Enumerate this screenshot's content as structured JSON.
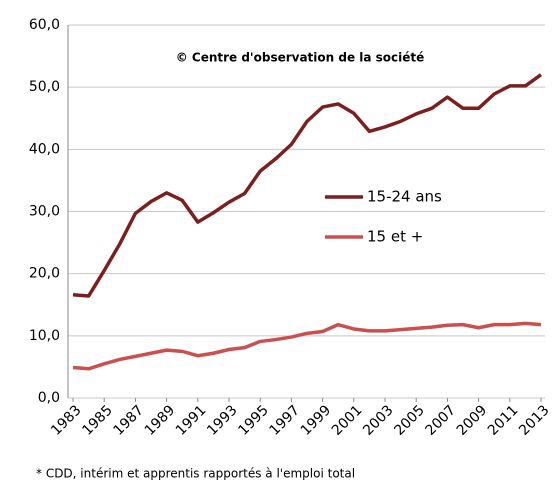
{
  "chart_data": {
    "type": "line",
    "annotation": "© Centre d'observation de la société",
    "footnote": "* CDD, intérim et apprentis rapportés à l'emploi total",
    "x": [
      1983,
      1984,
      1985,
      1986,
      1987,
      1988,
      1989,
      1990,
      1991,
      1992,
      1993,
      1994,
      1995,
      1996,
      1997,
      1998,
      1999,
      2000,
      2001,
      2002,
      2003,
      2004,
      2005,
      2006,
      2007,
      2008,
      2009,
      2010,
      2011,
      2012,
      2013
    ],
    "xlim": [
      1983,
      2013
    ],
    "xticks": [
      1983,
      1985,
      1987,
      1989,
      1991,
      1993,
      1995,
      1997,
      1999,
      2001,
      2003,
      2005,
      2007,
      2009,
      2011,
      2013
    ],
    "ylim": [
      0,
      60
    ],
    "yticks": [
      {
        "value": 0,
        "label": "0,0"
      },
      {
        "value": 10,
        "label": "10,0"
      },
      {
        "value": 20,
        "label": "20,0"
      },
      {
        "value": 30,
        "label": "30,0"
      },
      {
        "value": 40,
        "label": "40,0"
      },
      {
        "value": 50,
        "label": "50,0"
      },
      {
        "value": 60,
        "label": "60,0"
      }
    ],
    "grid": true,
    "series": [
      {
        "name": "15-24 ans",
        "color": "#7b1f1f",
        "values": [
          16.6,
          16.4,
          20.5,
          24.8,
          29.7,
          31.6,
          33.0,
          31.8,
          28.3,
          29.8,
          31.5,
          32.9,
          36.5,
          38.5,
          40.8,
          44.5,
          46.8,
          47.3,
          45.8,
          42.9,
          43.6,
          44.5,
          45.7,
          46.6,
          48.4,
          46.6,
          46.6,
          48.9,
          50.2,
          50.2,
          52.0
        ]
      },
      {
        "name": "15 et +",
        "color": "#c9504f",
        "values": [
          4.9,
          4.7,
          5.5,
          6.2,
          6.7,
          7.2,
          7.7,
          7.5,
          6.8,
          7.2,
          7.8,
          8.1,
          9.1,
          9.4,
          9.8,
          10.4,
          10.7,
          11.8,
          11.1,
          10.8,
          10.8,
          11.0,
          11.2,
          11.4,
          11.7,
          11.8,
          11.3,
          11.8,
          11.8,
          12.0,
          11.8
        ]
      }
    ]
  }
}
